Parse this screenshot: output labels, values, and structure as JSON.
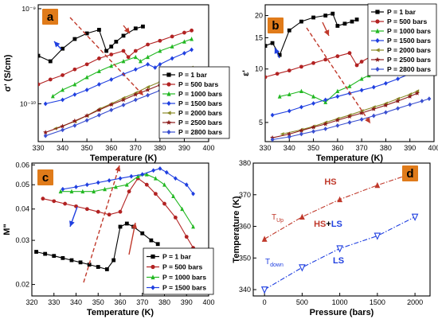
{
  "colors": {
    "p1": "#000000",
    "p500": "#b22222",
    "p1000": "#22b822",
    "p1500": "#1f3fe0",
    "p2000": "#8a8a28",
    "p2500": "#8b1a1a",
    "p2800": "#3a4fd0",
    "hs_text": "#c0392b",
    "ls_text": "#1f3fe0",
    "arrow": "#c0392b",
    "tag_bg": "#e07b1a"
  },
  "chart_data": [
    {
      "panel": "a",
      "type": "line",
      "xlabel": "Temperature (K)",
      "ylabel": "σ' (S/cm)",
      "xlim": [
        330,
        400
      ],
      "xticks": [
        330,
        340,
        350,
        360,
        370,
        380,
        390,
        400
      ],
      "yscale": "log",
      "ylim": [
        4e-11,
        1.1e-09
      ],
      "ytick_labels": [
        {
          "label": "10⁻⁹",
          "value": 1e-09
        },
        {
          "label": "10⁻¹⁰",
          "value": 1e-10
        }
      ],
      "legend_position": "lower-right",
      "series": [
        {
          "name": "P = 1 bar",
          "color_key": "p1",
          "marker": "square",
          "x": [
            330,
            335,
            340,
            345,
            350,
            355,
            358,
            360,
            362,
            365,
            370,
            373
          ],
          "y": [
            3.2e-10,
            2.8e-10,
            3.8e-10,
            4.8e-10,
            5.5e-10,
            6e-10,
            3.6e-10,
            4e-10,
            4.5e-10,
            5.2e-10,
            6.2e-10,
            6.5e-10
          ]
        },
        {
          "name": "P = 500 bars",
          "color_key": "p500",
          "marker": "circle",
          "x": [
            330,
            335,
            340,
            345,
            350,
            355,
            360,
            365,
            367,
            370,
            375,
            380,
            385,
            390,
            393
          ],
          "y": [
            1.6e-10,
            1.8e-10,
            2e-10,
            2.3e-10,
            2.6e-10,
            3e-10,
            3.3e-10,
            3.6e-10,
            3.1e-10,
            3.6e-10,
            4.2e-10,
            4.6e-10,
            5.1e-10,
            5.6e-10,
            5.9e-10
          ]
        },
        {
          "name": "P = 1000 bars",
          "color_key": "p1000",
          "marker": "triangle-up",
          "x": [
            336,
            340,
            345,
            350,
            355,
            360,
            365,
            370,
            372,
            375,
            380,
            385,
            390,
            393
          ],
          "y": [
            1.2e-10,
            1.4e-10,
            1.6e-10,
            1.9e-10,
            2.2e-10,
            2.5e-10,
            2.8e-10,
            3.1e-10,
            2.8e-10,
            3.1e-10,
            3.6e-10,
            4e-10,
            4.5e-10,
            4.8e-10
          ]
        },
        {
          "name": "P = 1500 bars",
          "color_key": "p1500",
          "marker": "diamond",
          "x": [
            333,
            340,
            345,
            350,
            355,
            360,
            365,
            370,
            375,
            378,
            380,
            385,
            390,
            393
          ],
          "y": [
            1e-10,
            1.1e-10,
            1.25e-10,
            1.4e-10,
            1.6e-10,
            1.8e-10,
            2.05e-10,
            2.3e-10,
            2.6e-10,
            2.4e-10,
            2.6e-10,
            3e-10,
            3.4e-10,
            3.7e-10
          ]
        },
        {
          "name": "P = 2000 bars",
          "color_key": "p2000",
          "marker": "triangle-left",
          "x": [
            337,
            345,
            350,
            355,
            360,
            365,
            370,
            375,
            380,
            385,
            390,
            393
          ],
          "y": [
            5.5e-11,
            6.5e-11,
            7.5e-11,
            8.8e-11,
            1e-10,
            1.15e-10,
            1.3e-10,
            1.5e-10,
            1.7e-10,
            1.95e-10,
            2.2e-10,
            2.4e-10
          ]
        },
        {
          "name": "P = 2500 bars",
          "color_key": "p2500",
          "marker": "star",
          "x": [
            333,
            340,
            345,
            350,
            355,
            360,
            365,
            370,
            375,
            380,
            385,
            390,
            393
          ],
          "y": [
            5e-11,
            5.8e-11,
            6.6e-11,
            7.5e-11,
            8.6e-11,
            9.8e-11,
            1.1e-10,
            1.25e-10,
            1.4e-10,
            1.58e-10,
            1.78e-10,
            2e-10,
            2.15e-10
          ]
        },
        {
          "name": "P = 2800 bars",
          "color_key": "p2800",
          "marker": "diamond",
          "x": [
            333,
            340,
            345,
            350,
            355,
            360,
            365,
            370,
            375,
            380,
            385,
            390,
            395,
            398
          ],
          "y": [
            4.6e-11,
            5.3e-11,
            5.9e-11,
            6.7e-11,
            7.6e-11,
            8.6e-11,
            9.7e-11,
            1.1e-10,
            1.23e-10,
            1.38e-10,
            1.55e-10,
            1.72e-10,
            1.9e-10,
            2e-10
          ]
        }
      ]
    },
    {
      "panel": "b",
      "type": "line",
      "xlabel": "Temperature (K)",
      "ylabel": "ε'",
      "xlim": [
        330,
        400
      ],
      "xticks": [
        330,
        340,
        350,
        360,
        370,
        380,
        390,
        400
      ],
      "yscale": "log",
      "ylim": [
        3.9,
        23
      ],
      "ytick_labels": [
        {
          "label": "5",
          "value": 5
        },
        {
          "label": "10",
          "value": 10
        },
        {
          "label": "15",
          "value": 15
        },
        {
          "label": "20",
          "value": 20
        }
      ],
      "legend_position": "upper-right",
      "series": [
        {
          "name": "P = 1 bar",
          "color_key": "p1",
          "marker": "square",
          "x": [
            330,
            333,
            336,
            340,
            345,
            350,
            355,
            358,
            360,
            363,
            366,
            368
          ],
          "y": [
            13.5,
            14.0,
            12.0,
            16.5,
            18.5,
            19.5,
            20.0,
            20.5,
            17.5,
            18.0,
            18.5,
            19.0
          ]
        },
        {
          "name": "P = 500 bars",
          "color_key": "p500",
          "marker": "circle",
          "x": [
            330,
            335,
            340,
            345,
            350,
            355,
            360,
            365,
            368,
            370,
            375,
            380,
            385,
            390,
            393
          ],
          "y": [
            9.0,
            9.4,
            9.8,
            10.3,
            10.8,
            11.3,
            11.8,
            12.3,
            10.5,
            11.0,
            12.0,
            12.6,
            13.2,
            13.8,
            14.2
          ]
        },
        {
          "name": "P = 1000 bars",
          "color_key": "p1000",
          "marker": "triangle-up",
          "x": [
            336,
            340,
            345,
            350,
            355,
            360,
            365,
            370,
            373
          ],
          "y": [
            7.0,
            7.2,
            7.5,
            7.0,
            6.5,
            7.5,
            8.0,
            8.8,
            9.2
          ]
        },
        {
          "name": "P = 1500 bars",
          "color_key": "p1500",
          "marker": "diamond",
          "x": [
            333,
            340,
            345,
            350,
            355,
            360,
            365,
            370,
            375,
            380,
            385,
            390,
            393
          ],
          "y": [
            5.5,
            5.8,
            6.1,
            6.4,
            6.7,
            7.0,
            7.3,
            7.6,
            7.9,
            8.3,
            8.8,
            9.4,
            9.8
          ]
        },
        {
          "name": "P = 2000 bars",
          "color_key": "p2000",
          "marker": "triangle-left",
          "x": [
            337,
            345,
            350,
            355,
            360,
            365,
            370,
            375,
            380,
            385,
            390,
            393
          ],
          "y": [
            4.3,
            4.55,
            4.75,
            5.0,
            5.25,
            5.5,
            5.8,
            6.1,
            6.4,
            6.8,
            7.2,
            7.5
          ]
        },
        {
          "name": "P = 2500 bars",
          "color_key": "p2500",
          "marker": "star",
          "x": [
            333,
            340,
            345,
            350,
            355,
            360,
            365,
            370,
            375,
            380,
            385,
            390,
            393
          ],
          "y": [
            4.1,
            4.3,
            4.5,
            4.7,
            4.9,
            5.15,
            5.4,
            5.65,
            5.95,
            6.25,
            6.6,
            7.0,
            7.3
          ]
        },
        {
          "name": "P = 2800 bars",
          "color_key": "p2800",
          "marker": "diamond",
          "x": [
            333,
            340,
            345,
            350,
            355,
            360,
            365,
            370,
            375,
            380,
            385,
            390,
            395,
            398
          ],
          "y": [
            4.0,
            4.15,
            4.3,
            4.45,
            4.6,
            4.8,
            5.0,
            5.2,
            5.45,
            5.7,
            6.0,
            6.3,
            6.6,
            6.8
          ]
        }
      ]
    },
    {
      "panel": "c",
      "type": "line",
      "xlabel": "Temperature (K)",
      "ylabel": "M\"",
      "xlim": [
        320,
        400
      ],
      "xticks": [
        320,
        330,
        340,
        350,
        360,
        370,
        380,
        390,
        400
      ],
      "yscale": "log",
      "ylim": [
        0.018,
        0.061
      ],
      "ytick_labels": [
        {
          "label": "0.02",
          "value": 0.02
        },
        {
          "label": "0.03",
          "value": 0.03
        },
        {
          "label": "0.04",
          "value": 0.04
        },
        {
          "label": "0.05",
          "value": 0.05
        },
        {
          "label": "0.06",
          "value": 0.06
        }
      ],
      "legend_position": "lower-right",
      "series": [
        {
          "name": "P = 1 bar",
          "color_key": "p1",
          "marker": "square",
          "x": [
            322,
            326,
            330,
            334,
            338,
            342,
            346,
            350,
            354,
            357,
            360,
            363,
            366,
            370,
            374,
            377
          ],
          "y": [
            0.027,
            0.0265,
            0.026,
            0.0255,
            0.025,
            0.0245,
            0.024,
            0.0235,
            0.023,
            0.025,
            0.034,
            0.035,
            0.034,
            0.032,
            0.03,
            0.029
          ]
        },
        {
          "name": "P = 500 bars",
          "color_key": "p500",
          "marker": "circle",
          "x": [
            325,
            330,
            335,
            340,
            345,
            350,
            355,
            360,
            364,
            368,
            372,
            376,
            380,
            385,
            390,
            393
          ],
          "y": [
            0.044,
            0.043,
            0.042,
            0.041,
            0.04,
            0.039,
            0.038,
            0.039,
            0.047,
            0.053,
            0.05,
            0.046,
            0.042,
            0.037,
            0.031,
            0.028
          ]
        },
        {
          "name": "P = 1000 bars",
          "color_key": "p1000",
          "marker": "triangle-up",
          "x": [
            333,
            338,
            343,
            348,
            353,
            358,
            363,
            368,
            372,
            376,
            380,
            384,
            388,
            393
          ],
          "y": [
            0.047,
            0.047,
            0.047,
            0.047,
            0.048,
            0.049,
            0.05,
            0.054,
            0.055,
            0.053,
            0.05,
            0.045,
            0.04,
            0.034
          ]
        },
        {
          "name": "P = 1500 bars",
          "color_key": "p1500",
          "marker": "diamond",
          "x": [
            334,
            340,
            345,
            350,
            355,
            360,
            365,
            370,
            375,
            378,
            381,
            385,
            390,
            393
          ],
          "y": [
            0.048,
            0.049,
            0.05,
            0.051,
            0.052,
            0.053,
            0.054,
            0.055,
            0.057,
            0.058,
            0.056,
            0.053,
            0.05,
            0.046
          ]
        }
      ]
    },
    {
      "panel": "d",
      "type": "scatter",
      "xlabel": "Pressure (bars)",
      "ylabel": "Temperature (K)",
      "xlim": [
        -150,
        2200
      ],
      "xticks": [
        0,
        500,
        1000,
        1500,
        2000
      ],
      "ylim": [
        338,
        380
      ],
      "yticks": [
        340,
        350,
        360,
        370,
        380
      ],
      "series": [
        {
          "name": "T_Up",
          "color_key": "hs_text",
          "marker": "triangle-up-filled",
          "fit": "dash-dot",
          "x": [
            0,
            500,
            1000,
            1500,
            2000
          ],
          "y": [
            356,
            363,
            368.5,
            373,
            377
          ]
        },
        {
          "name": "T_down",
          "color_key": "ls_text",
          "marker": "triangle-down-open",
          "fit": "dash-dot",
          "x": [
            0,
            500,
            1000,
            1500,
            2000
          ],
          "y": [
            340,
            347,
            353,
            357,
            363
          ]
        }
      ]
    }
  ],
  "panels": {
    "a": {
      "tag": "a",
      "legend": [
        "P = 1 bar",
        "P = 500 bars",
        "P = 1000 bars",
        "P = 1500 bars",
        "P = 2000 bars",
        "P = 2500 bars",
        "P = 2800 bars"
      ]
    },
    "b": {
      "tag": "b",
      "legend": [
        "P = 1 bar",
        "P = 500 bars",
        "P = 1000 bars",
        "P = 1500 bars",
        "P = 2000 bars",
        "P = 2500 bars",
        "P = 2800 bars"
      ]
    },
    "c": {
      "tag": "c",
      "legend": [
        "P = 1 bar",
        "P = 500 bars",
        "P = 1000 bars",
        "P = 1500 bars"
      ]
    },
    "d": {
      "tag": "d",
      "annotations": {
        "hs": "HS",
        "hs_ls_a": "HS",
        "hs_ls_plus": "+",
        "hs_ls_b": "LS",
        "ls": "LS",
        "tup_main": "T",
        "tup_sub": "Up",
        "tdown_main": "T",
        "tdown_sub": "down"
      }
    }
  }
}
